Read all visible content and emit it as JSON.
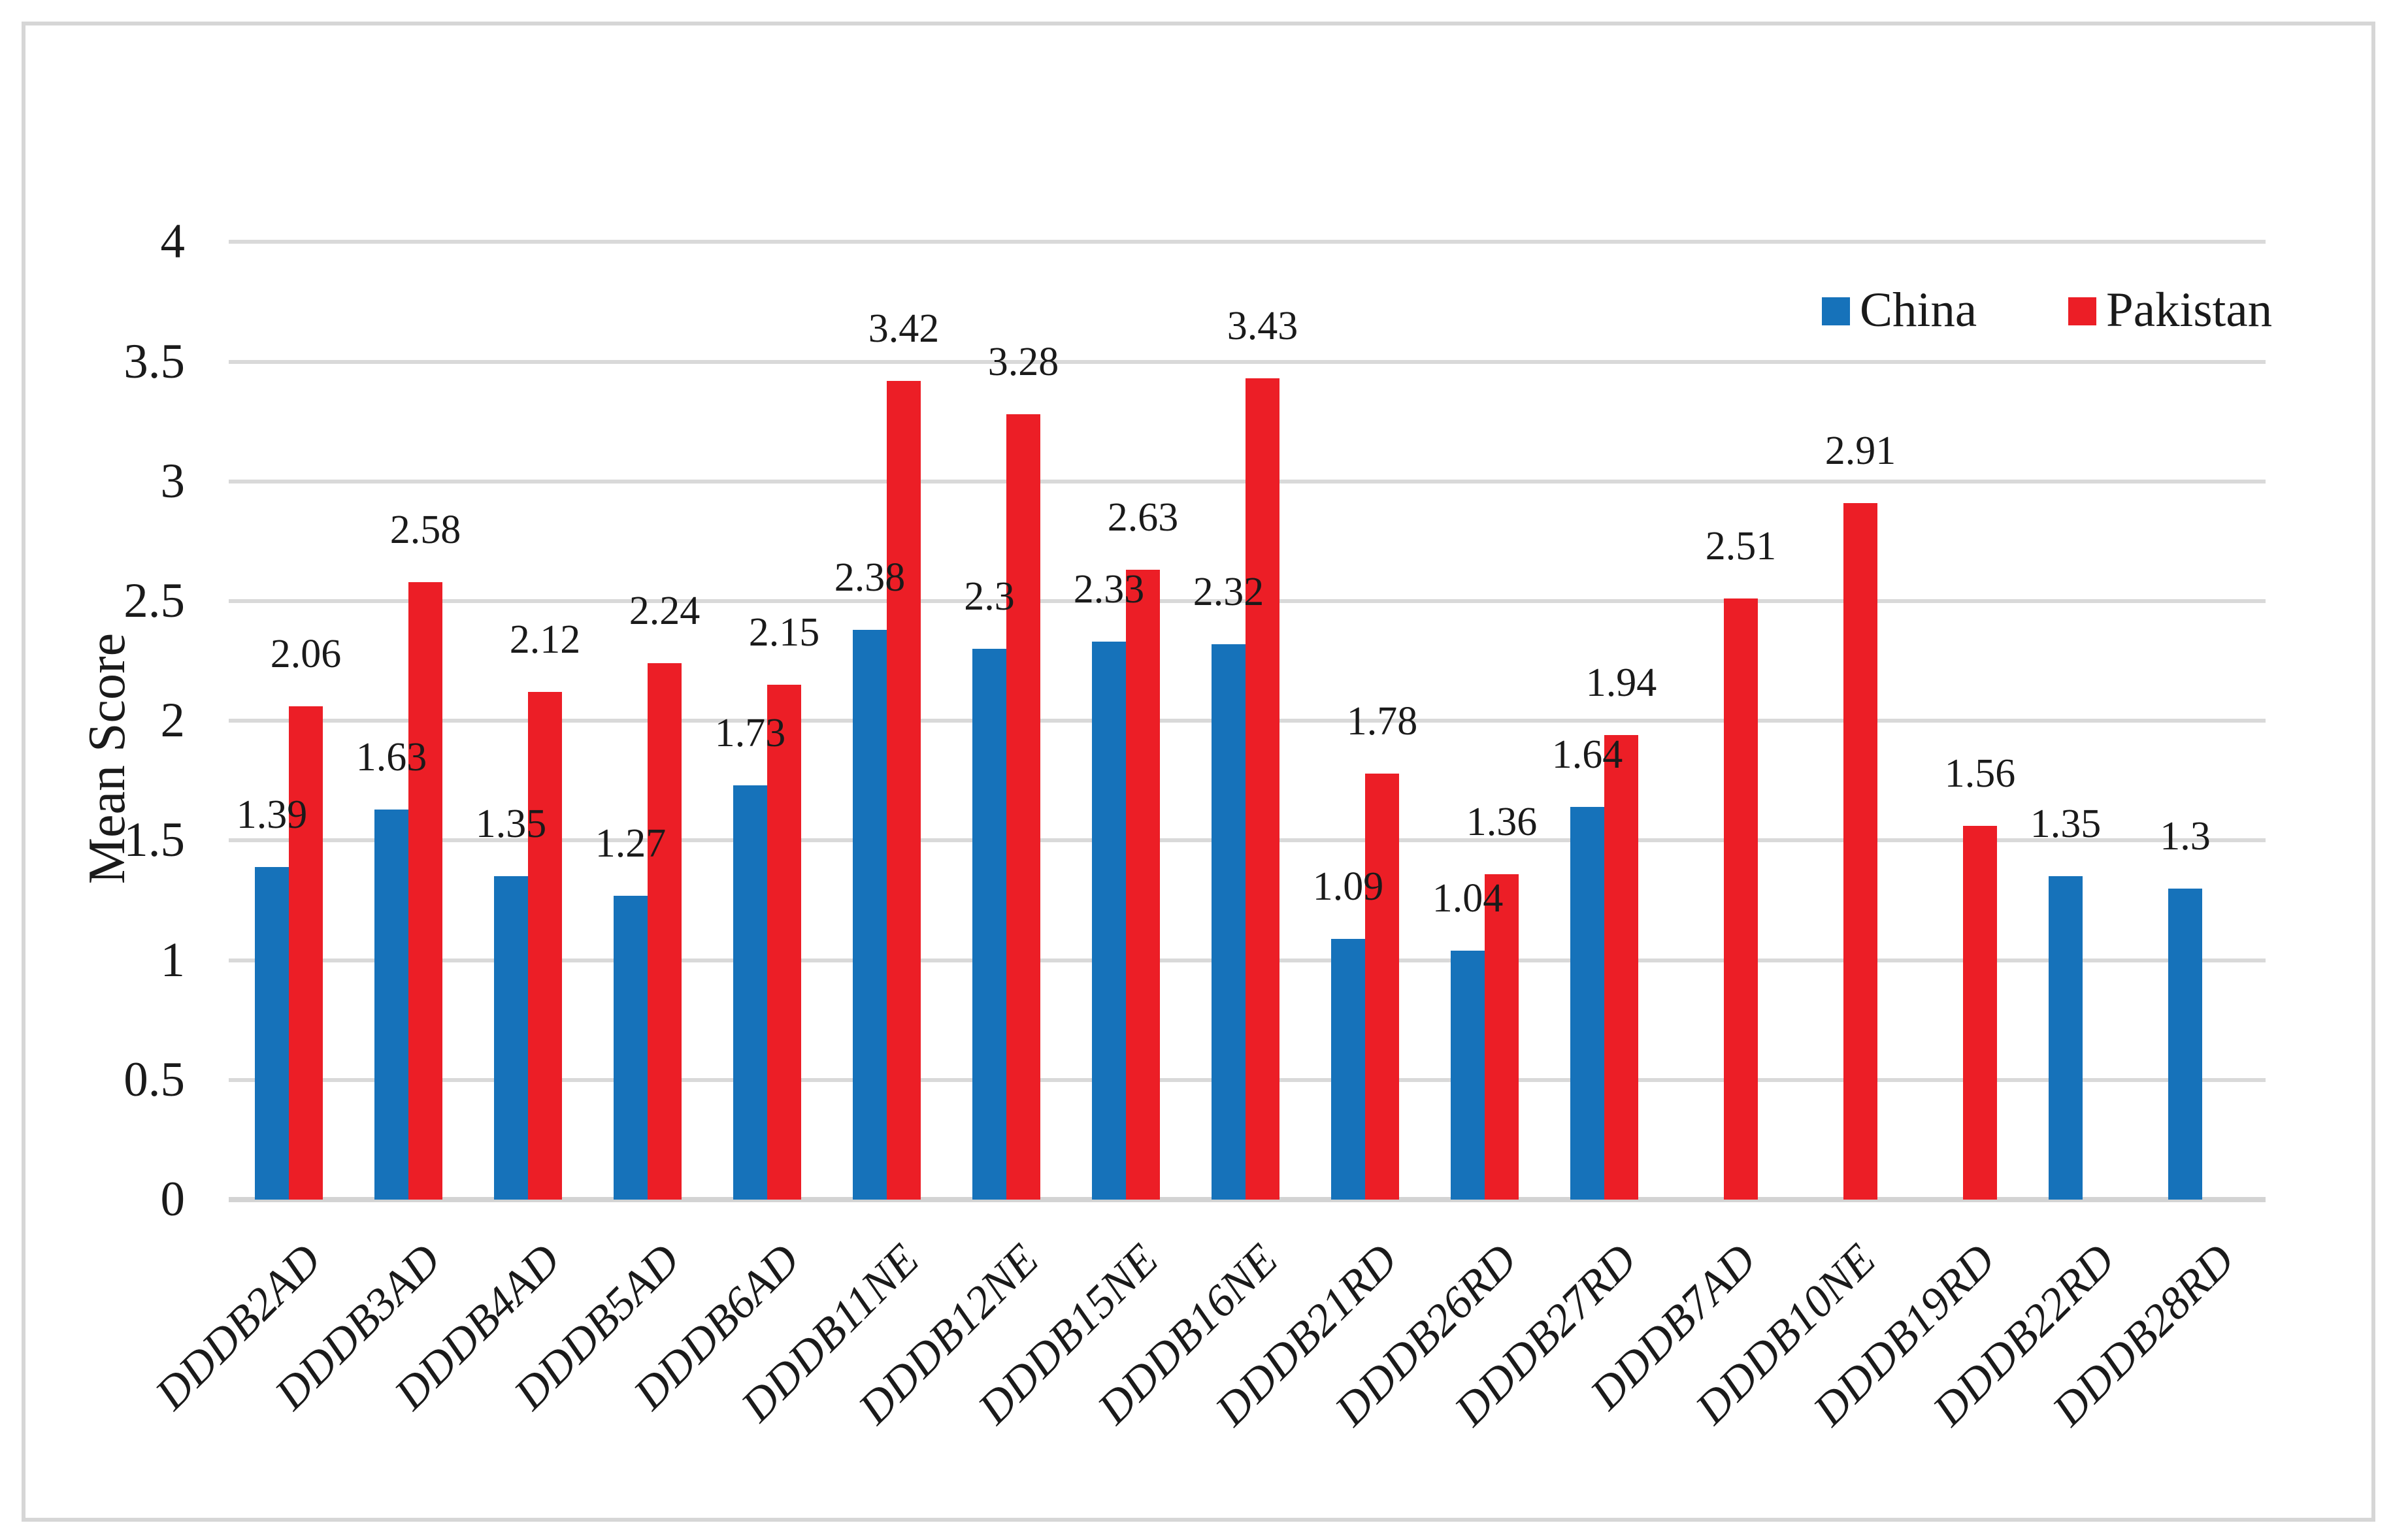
{
  "chart_data": {
    "type": "bar",
    "title": "",
    "xlabel": "",
    "ylabel": "Mean Score",
    "ylim": [
      0,
      4
    ],
    "ytick_step": 0.5,
    "ytick_labels": [
      "0",
      "0.5",
      "1",
      "1.5",
      "2",
      "2.5",
      "3",
      "3.5",
      "4"
    ],
    "grid": true,
    "legend_position": "top-right",
    "categories": [
      "DDDB2AD",
      "DDDB3AD",
      "DDDB4AD",
      "DDDB5AD",
      "DDDB6AD",
      "DDDB11NE",
      "DDDB12NE",
      "DDDB15NE",
      "DDDB16NE",
      "DDDB21RD",
      "DDDB26RD",
      "DDDB27RD",
      "DDDB7AD",
      "DDDB10NE",
      "DDDB19RD",
      "DDDB22RD",
      "DDDB28RD"
    ],
    "series": [
      {
        "name": "China",
        "color": "#1672ba",
        "values": [
          1.39,
          1.63,
          1.35,
          1.27,
          1.73,
          2.38,
          2.3,
          2.33,
          2.32,
          1.09,
          1.04,
          1.64,
          null,
          null,
          null,
          1.35,
          1.3
        ]
      },
      {
        "name": "Pakistan",
        "color": "#ec1e26",
        "values": [
          2.06,
          2.58,
          2.12,
          2.24,
          2.15,
          3.42,
          3.28,
          2.63,
          3.43,
          1.78,
          1.36,
          1.94,
          2.51,
          2.91,
          1.56,
          null,
          null
        ]
      }
    ]
  },
  "colors": {
    "china_bar": "#1672ba",
    "pakistan_bar": "#ec1e26",
    "gridline": "#d9d9d9",
    "axis_line": "#d3d3d3",
    "figure_border": "#d6d6d6",
    "text": "#1a1a1a"
  }
}
